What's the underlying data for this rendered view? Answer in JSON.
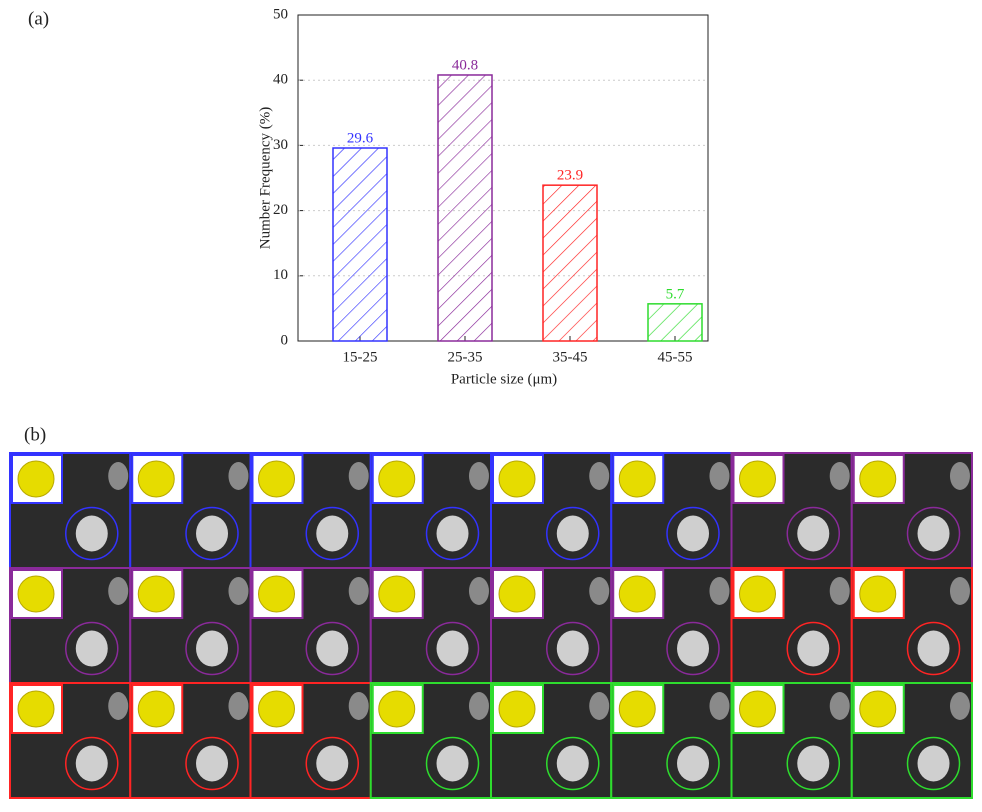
{
  "panel_a": "(a)",
  "panel_b": "(b)",
  "chart_data": {
    "type": "bar",
    "categories": [
      "15-25",
      "25-35",
      "35-45",
      "45-55"
    ],
    "values": [
      29.6,
      40.8,
      23.9,
      5.7
    ],
    "colors": [
      "#3333ff",
      "#8a2a9a",
      "#ff2424",
      "#2edc2e"
    ],
    "x_label": "Particle size (μm)",
    "y_label": "Number Frequency (%)",
    "ylim": [
      0,
      50
    ],
    "yticks": [
      0,
      10,
      20,
      30,
      40,
      50
    ],
    "grid": true
  }
}
